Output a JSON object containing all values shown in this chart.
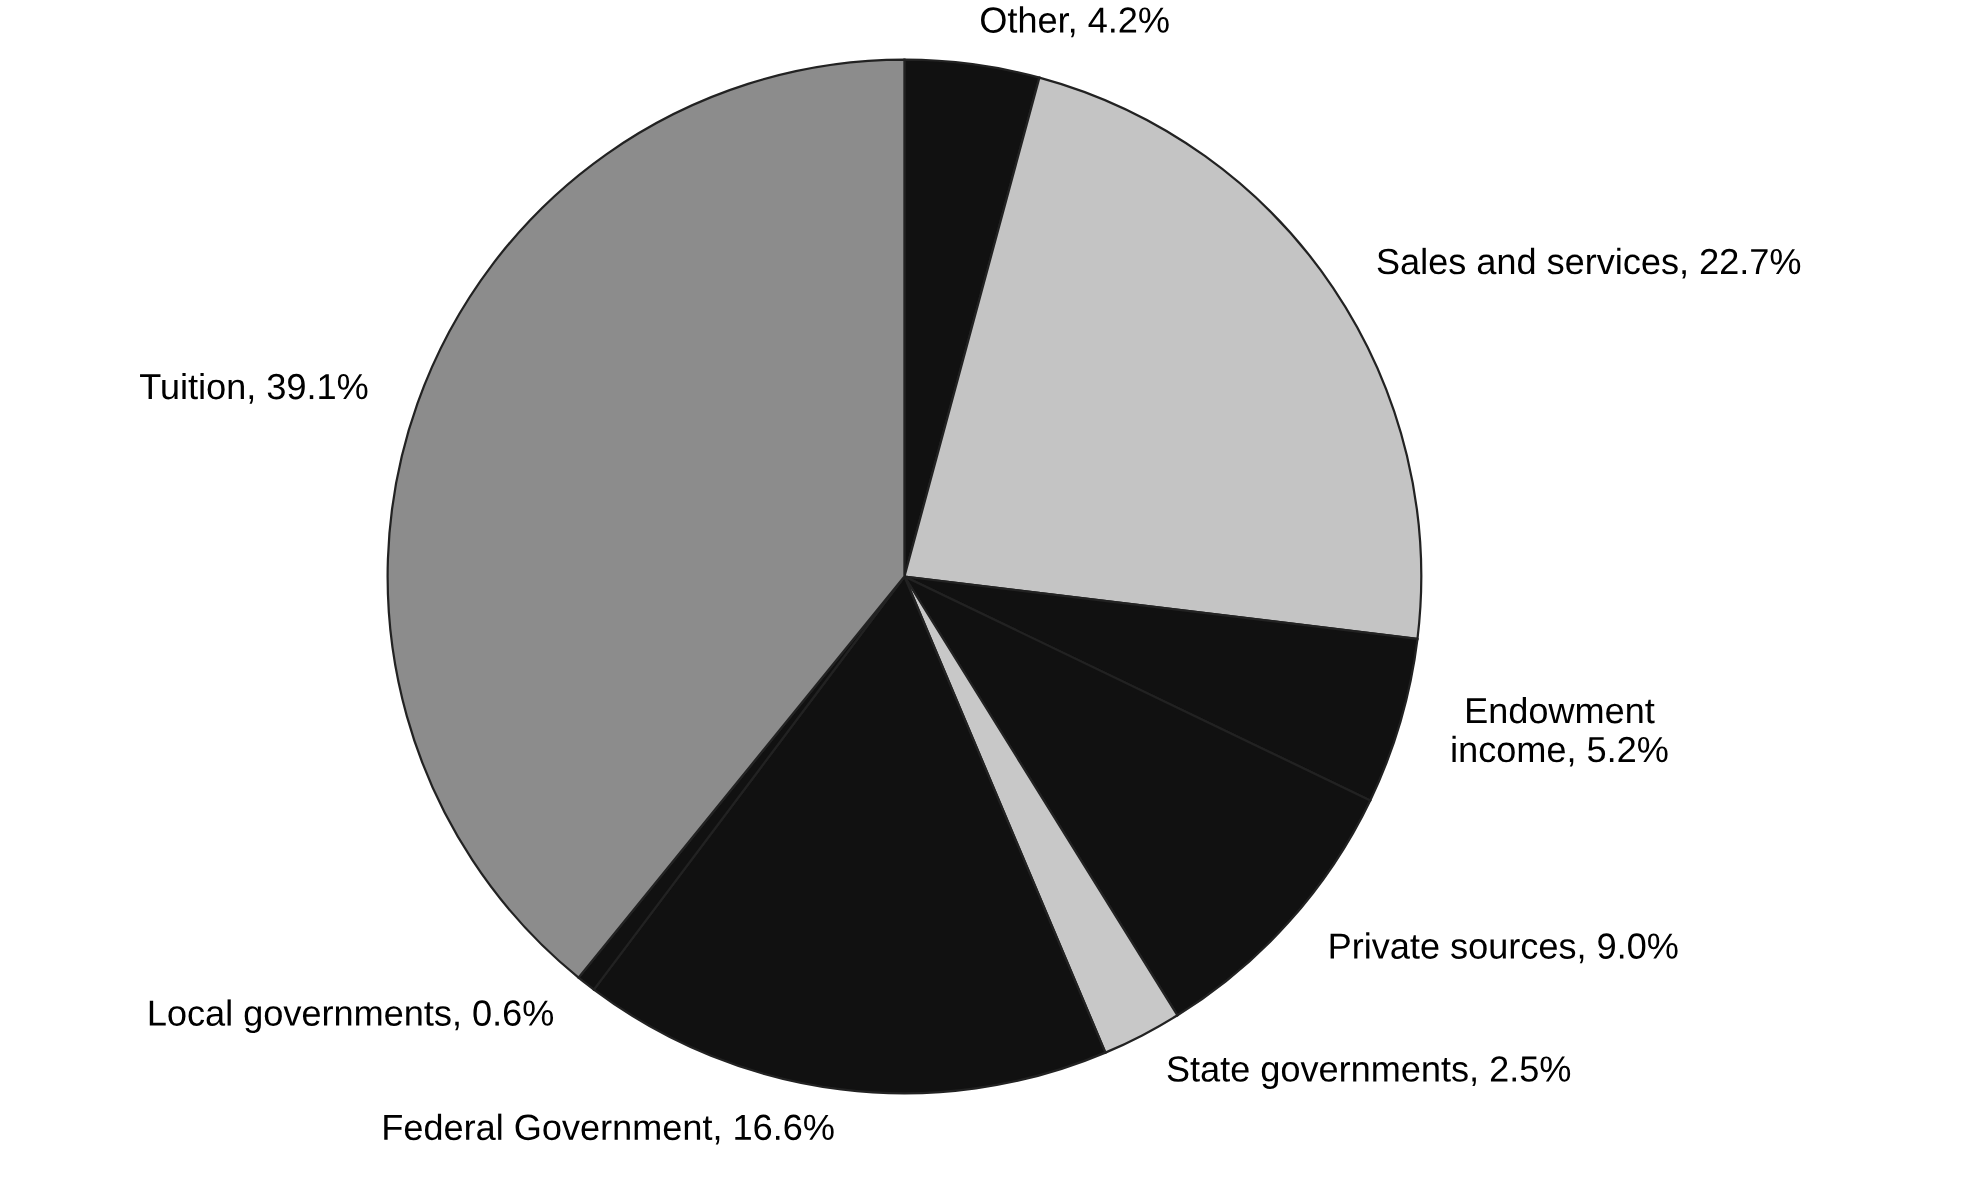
{
  "chart_data": {
    "type": "pie",
    "categories": [
      "Other",
      "Sales and services",
      "Endowment\nincome",
      "Private sources",
      "State governments",
      "Federal Government",
      "Local governments",
      "Tuition"
    ],
    "values": [
      4.2,
      22.7,
      5.2,
      9.0,
      2.5,
      16.6,
      0.6,
      39.1
    ],
    "value_labels": [
      "4.2%",
      "22.7%",
      "5.2%",
      "9.0%",
      "2.5%",
      "16.6%",
      "0.6%",
      "39.1%"
    ],
    "colors": [
      "#111111",
      "#c4c4c4",
      "#111111",
      "#111111",
      "#c8c8c8",
      "#111111",
      "#111111",
      "#8c8c8c"
    ],
    "legend": false
  }
}
